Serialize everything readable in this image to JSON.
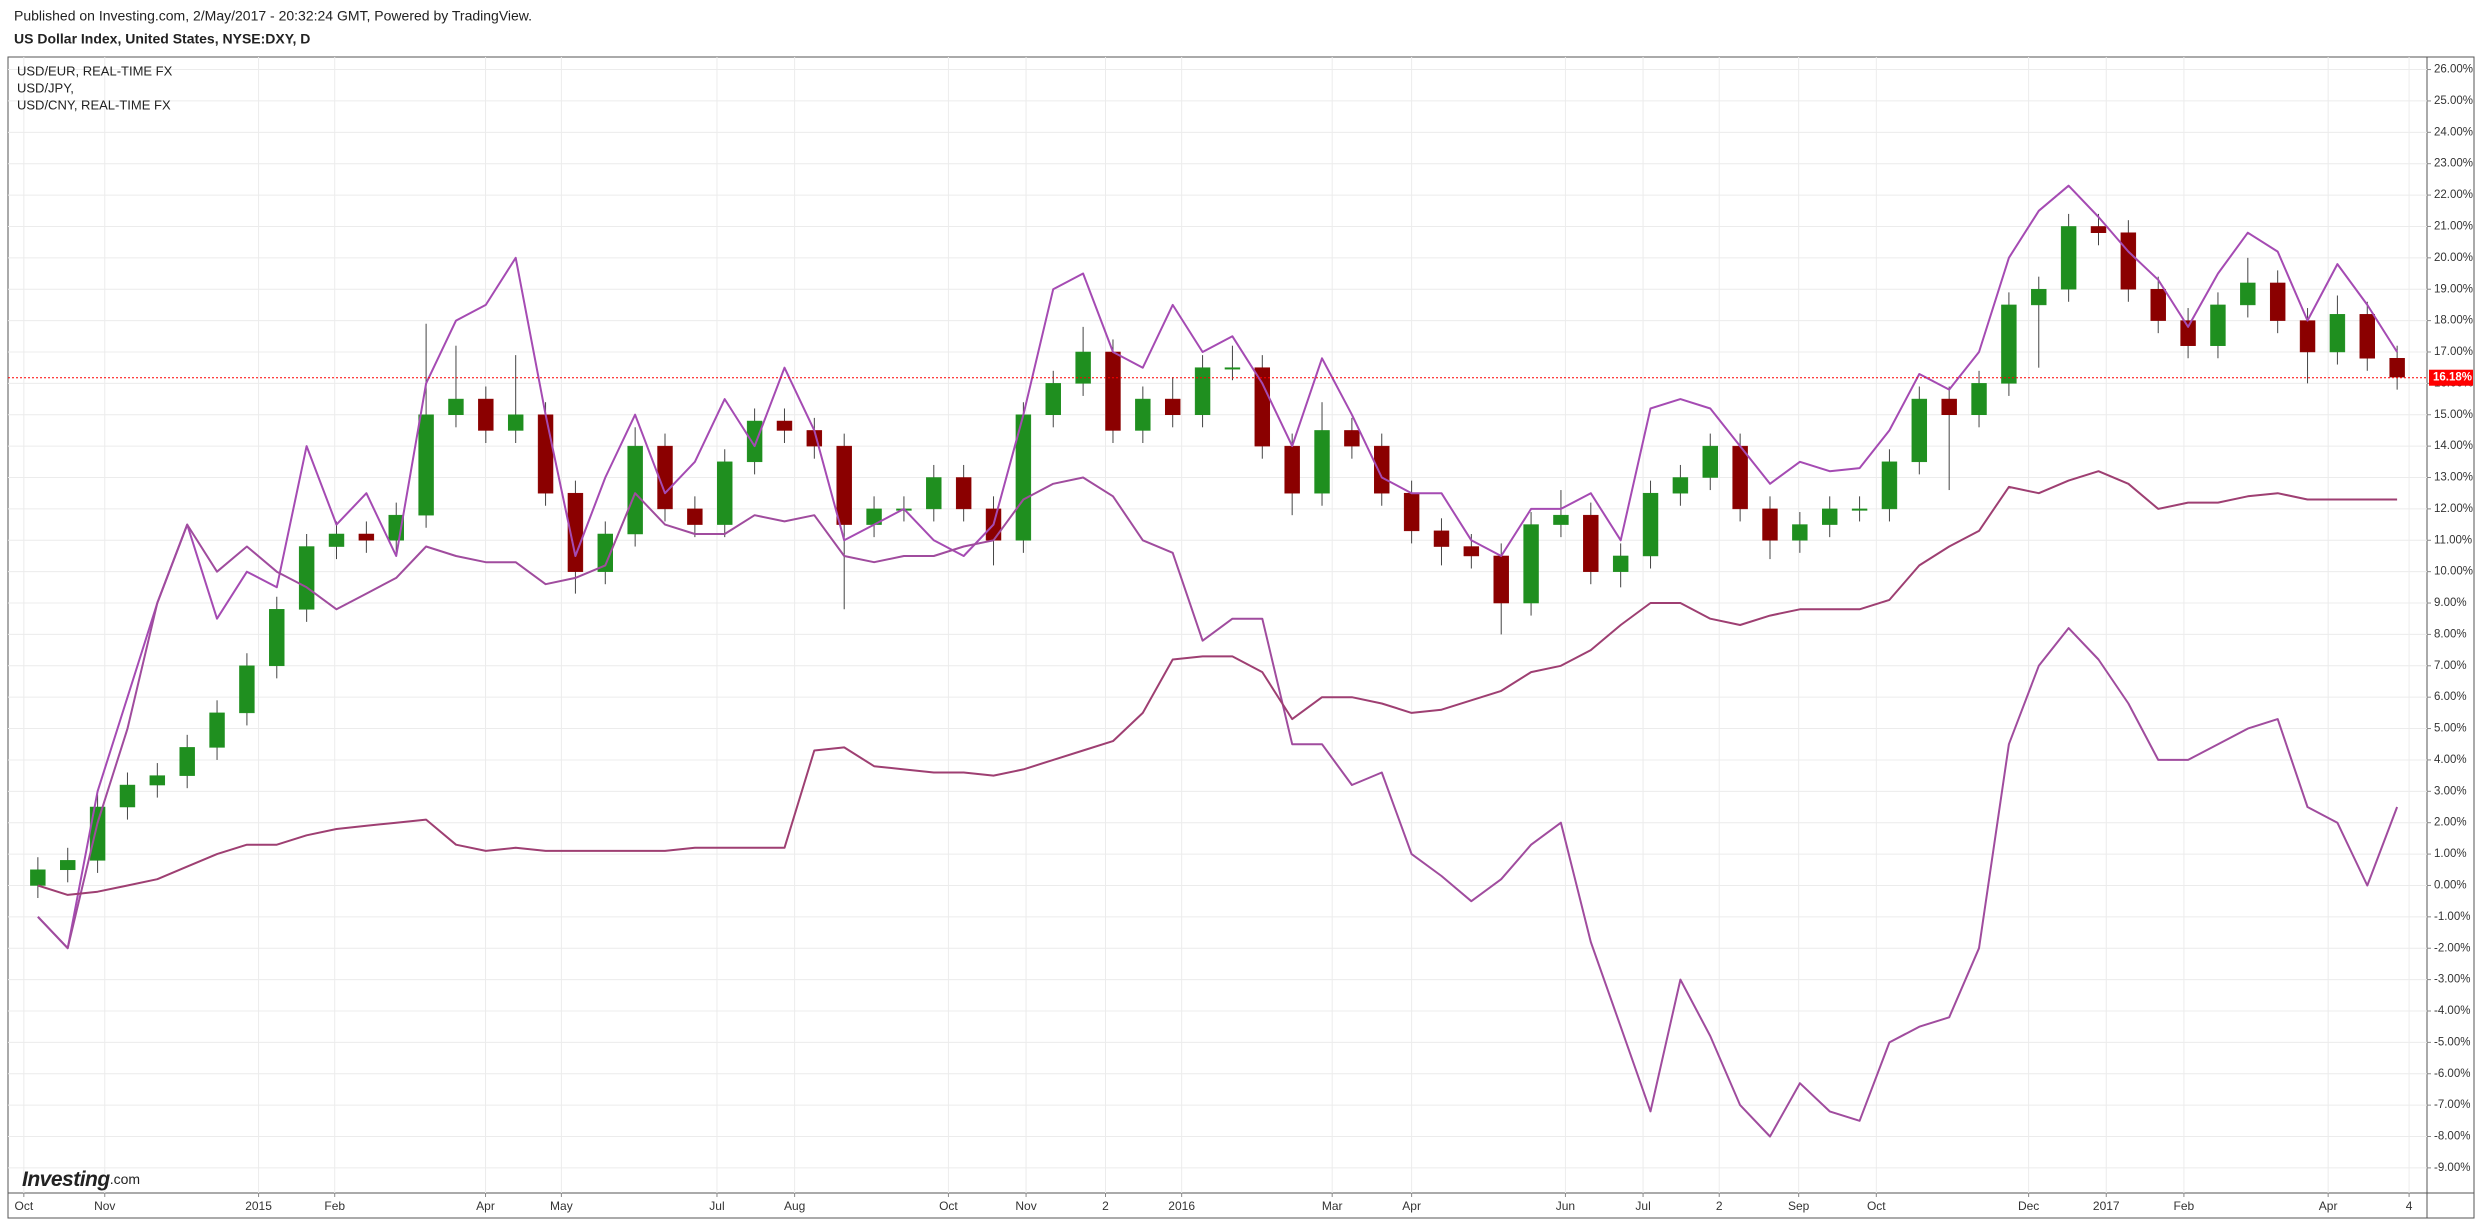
{
  "chart_data": {
    "type": "candlestick",
    "header": "Published on Investing.com, 2/May/2017 - 20:32:24 GMT, Powered by TradingView.",
    "title": "US Dollar Index, United States, NYSE:DXY, D",
    "logo": {
      "brand": "Investing",
      "suffix": ".com"
    },
    "candles": {
      "up_color": "#1f8f1f",
      "down_color": "#8b0000",
      "open": [
        0,
        0.5,
        0.8,
        2.5,
        3.2,
        3.5,
        4.4,
        5.5,
        7,
        8.8,
        10.8,
        11.2,
        11,
        11.8,
        15,
        15.5,
        14.5,
        15,
        12.5,
        10,
        11.2,
        14,
        12,
        11.5,
        13.5,
        14.8,
        14.5,
        14,
        11.5,
        12,
        12,
        13,
        12,
        11,
        15,
        16,
        17,
        14.5,
        15.5,
        15,
        16.5,
        16.5,
        14,
        12.5,
        14.5,
        14,
        12.5,
        11.3,
        10.8,
        10.5,
        9,
        11.5,
        11.8,
        10,
        10.5,
        12.5,
        13,
        14,
        12,
        11,
        11.5,
        12,
        12,
        13.5,
        15.5,
        15,
        16,
        18.5,
        19,
        21,
        20.8,
        19,
        18,
        17.2,
        18.5,
        19.2,
        18,
        17,
        18.2,
        16.8
      ],
      "high": [
        0.9,
        1.2,
        2.9,
        3.6,
        3.9,
        4.8,
        5.9,
        7.4,
        9.2,
        11.2,
        11.6,
        11.6,
        12.2,
        17.9,
        17.2,
        15.9,
        16.9,
        15.4,
        12.9,
        11.6,
        14.6,
        14.4,
        12.4,
        13.9,
        15.2,
        15.2,
        14.9,
        14.4,
        12.4,
        12.4,
        13.4,
        13.4,
        12.4,
        15.4,
        16.4,
        17.8,
        17.4,
        15.9,
        16.2,
        16.9,
        17.2,
        16.9,
        14.4,
        15.4,
        14.9,
        14.4,
        12.9,
        11.7,
        11.2,
        10.9,
        11.9,
        12.6,
        12.2,
        10.9,
        12.9,
        13.4,
        14.4,
        14.4,
        12.4,
        11.9,
        12.4,
        12.4,
        13.9,
        15.9,
        15.9,
        16.4,
        18.9,
        19.4,
        21.4,
        21.4,
        21.2,
        19.4,
        18.4,
        18.9,
        20,
        19.6,
        18.4,
        18.8,
        18.6,
        17.2
      ],
      "low": [
        -0.4,
        0.1,
        0.4,
        2.1,
        2.8,
        3.1,
        4,
        5.1,
        6.6,
        8.4,
        10.4,
        10.6,
        10.6,
        11.4,
        14.6,
        14.1,
        14.1,
        12.1,
        9.3,
        9.6,
        10.8,
        11.6,
        11.1,
        11.1,
        13.1,
        14.1,
        13.6,
        8.8,
        11.1,
        11.6,
        11.6,
        11.6,
        10.2,
        10.6,
        14.6,
        15.6,
        14.1,
        14.1,
        14.6,
        14.6,
        16.1,
        13.6,
        11.8,
        12.1,
        13.6,
        12.1,
        10.9,
        10.2,
        10.1,
        8,
        8.6,
        11.1,
        9.6,
        9.5,
        10.1,
        12.1,
        12.6,
        11.6,
        10.4,
        10.6,
        11.1,
        11.6,
        11.6,
        13.1,
        12.6,
        14.6,
        15.6,
        16.5,
        18.6,
        20.4,
        18.6,
        17.6,
        16.8,
        16.8,
        18.1,
        17.6,
        16,
        16.6,
        16.4,
        15.8
      ],
      "close": [
        0.5,
        0.8,
        2.5,
        3.2,
        3.5,
        4.4,
        5.5,
        7,
        8.8,
        10.8,
        11.2,
        11,
        11.8,
        15,
        15.5,
        14.5,
        15,
        12.5,
        10,
        11.2,
        14,
        12,
        11.5,
        13.5,
        14.8,
        14.5,
        14,
        11.5,
        12,
        12,
        13,
        12,
        11,
        15,
        16,
        17,
        14.5,
        15.5,
        15,
        16.5,
        16.5,
        14,
        12.5,
        14.5,
        14,
        12.5,
        11.3,
        10.8,
        10.5,
        9,
        11.5,
        11.8,
        10,
        10.5,
        12.5,
        13,
        14,
        12,
        11,
        11.5,
        12,
        12,
        13.5,
        15.5,
        15,
        16,
        18.5,
        19,
        21,
        20.8,
        19,
        18,
        17.2,
        18.5,
        19.2,
        18,
        17,
        18.2,
        16.8,
        16.2
      ]
    },
    "series": [
      {
        "name": "USD/EUR, REAL-TIME FX",
        "color": "#a54bb3",
        "values": [
          -1,
          -2,
          3,
          6,
          9,
          11.5,
          8.5,
          10,
          9.5,
          14,
          11.5,
          12.5,
          10.5,
          16,
          18,
          18.5,
          20,
          15,
          10.5,
          13,
          15,
          12.5,
          13.5,
          15.5,
          14,
          16.5,
          14.5,
          11,
          11.5,
          12,
          11,
          10.5,
          11.5,
          15,
          19,
          19.5,
          17,
          16.5,
          18.5,
          17,
          17.5,
          16,
          14,
          16.8,
          15,
          13,
          12.5,
          12.5,
          11,
          10.5,
          12,
          12,
          12.5,
          11,
          15.2,
          15.5,
          15.2,
          14,
          12.8,
          13.5,
          13.2,
          13.3,
          14.5,
          16.3,
          15.8,
          17,
          20,
          21.5,
          22.3,
          21.3,
          20.2,
          19.3,
          17.8,
          19.5,
          20.8,
          20.2,
          18,
          19.8,
          18.5,
          17
        ]
      },
      {
        "name": "USD/JPY,",
        "color": "#a04c9e",
        "values": [
          -1,
          -2,
          2,
          5,
          9,
          11.5,
          10,
          10.8,
          10,
          9.5,
          8.8,
          9.3,
          9.8,
          10.8,
          10.5,
          10.3,
          10.3,
          9.6,
          9.8,
          10.2,
          12.5,
          11.5,
          11.2,
          11.2,
          11.8,
          11.6,
          11.8,
          10.5,
          10.3,
          10.5,
          10.5,
          10.8,
          11,
          12.3,
          12.8,
          13,
          12.4,
          11,
          10.6,
          7.8,
          8.5,
          8.5,
          4.5,
          4.5,
          3.2,
          3.6,
          1,
          0.3,
          -0.5,
          0.2,
          1.3,
          2,
          -1.8,
          -4.5,
          -7.2,
          -3,
          -4.8,
          -7,
          -8,
          -6.3,
          -7.2,
          -7.5,
          -5,
          -4.5,
          -4.2,
          -2,
          4.5,
          7,
          8.2,
          7.2,
          5.8,
          4,
          4,
          4.5,
          5,
          5.3,
          2.5,
          2,
          0,
          2.5
        ]
      },
      {
        "name": "USD/CNY, REAL-TIME FX",
        "color": "#9e3f72",
        "values": [
          0,
          -0.3,
          -0.2,
          0,
          0.2,
          0.6,
          1,
          1.3,
          1.3,
          1.6,
          1.8,
          1.9,
          2,
          2.1,
          1.3,
          1.1,
          1.2,
          1.1,
          1.1,
          1.1,
          1.1,
          1.1,
          1.2,
          1.2,
          1.2,
          1.2,
          4.3,
          4.4,
          3.8,
          3.7,
          3.6,
          3.6,
          3.5,
          3.7,
          4,
          4.3,
          4.6,
          5.5,
          7.2,
          7.3,
          7.3,
          6.8,
          5.3,
          6,
          6,
          5.8,
          5.5,
          5.6,
          5.9,
          6.2,
          6.8,
          7,
          7.5,
          8.3,
          9,
          9,
          8.5,
          8.3,
          8.6,
          8.8,
          8.8,
          8.8,
          9.1,
          10.2,
          10.8,
          11.3,
          12.7,
          12.5,
          12.9,
          13.2,
          12.8,
          12,
          12.2,
          12.2,
          12.4,
          12.5,
          12.3,
          12.3,
          12.3,
          12.3
        ]
      }
    ],
    "xlim": [
      -1,
      80
    ],
    "xticks": [
      {
        "value": -0.47,
        "label": "Oct"
      },
      {
        "value": 2.24,
        "label": "Nov"
      },
      {
        "value": 7.39,
        "label": "2015"
      },
      {
        "value": 9.94,
        "label": "Feb"
      },
      {
        "value": 14.99,
        "label": "Apr"
      },
      {
        "value": 17.53,
        "label": "May"
      },
      {
        "value": 22.74,
        "label": "Jul"
      },
      {
        "value": 25.34,
        "label": "Aug"
      },
      {
        "value": 30.49,
        "label": "Oct"
      },
      {
        "value": 33.09,
        "label": "Nov"
      },
      {
        "value": 35.75,
        "label": "2"
      },
      {
        "value": 38.3,
        "label": "2016"
      },
      {
        "value": 43.34,
        "label": "Mar"
      },
      {
        "value": 46.0,
        "label": "Apr"
      },
      {
        "value": 51.15,
        "label": "Jun"
      },
      {
        "value": 53.75,
        "label": "Jul"
      },
      {
        "value": 56.3,
        "label": "2"
      },
      {
        "value": 58.96,
        "label": "Sep"
      },
      {
        "value": 61.56,
        "label": "Oct"
      },
      {
        "value": 66.66,
        "label": "Dec"
      },
      {
        "value": 69.26,
        "label": "2017"
      },
      {
        "value": 71.86,
        "label": "Feb"
      },
      {
        "value": 76.69,
        "label": "Apr"
      },
      {
        "value": 79.4,
        "label": "4"
      }
    ],
    "ylim": [
      -9.8,
      26.4
    ],
    "yticks": [
      {
        "value": -9,
        "label": "-9.00%"
      },
      {
        "value": -8,
        "label": "-8.00%"
      },
      {
        "value": -7,
        "label": "-7.00%"
      },
      {
        "value": -6,
        "label": "-6.00%"
      },
      {
        "value": -5,
        "label": "-5.00%"
      },
      {
        "value": -4,
        "label": "-4.00%"
      },
      {
        "value": -3,
        "label": "-3.00%"
      },
      {
        "value": -2,
        "label": "-2.00%"
      },
      {
        "value": -1,
        "label": "-1.00%"
      },
      {
        "value": 0,
        "label": "0.00%"
      },
      {
        "value": 1,
        "label": "1.00%"
      },
      {
        "value": 2,
        "label": "2.00%"
      },
      {
        "value": 3,
        "label": "3.00%"
      },
      {
        "value": 4,
        "label": "4.00%"
      },
      {
        "value": 5,
        "label": "5.00%"
      },
      {
        "value": 6,
        "label": "6.00%"
      },
      {
        "value": 7,
        "label": "7.00%"
      },
      {
        "value": 8,
        "label": "8.00%"
      },
      {
        "value": 9,
        "label": "9.00%"
      },
      {
        "value": 10,
        "label": "10.00%"
      },
      {
        "value": 11,
        "label": "11.00%"
      },
      {
        "value": 12,
        "label": "12.00%"
      },
      {
        "value": 13,
        "label": "13.00%"
      },
      {
        "value": 14,
        "label": "14.00%"
      },
      {
        "value": 15,
        "label": "15.00%"
      },
      {
        "value": 16,
        "label": "16.00%"
      },
      {
        "value": 17,
        "label": "17.00%"
      },
      {
        "value": 18,
        "label": "18.00%"
      },
      {
        "value": 19,
        "label": "19.00%"
      },
      {
        "value": 20,
        "label": "20.00%"
      },
      {
        "value": 21,
        "label": "21.00%"
      },
      {
        "value": 22,
        "label": "22.00%"
      },
      {
        "value": 23,
        "label": "23.00%"
      },
      {
        "value": 24,
        "label": "24.00%"
      },
      {
        "value": 25,
        "label": "25.00%"
      },
      {
        "value": 26,
        "label": "26.00%"
      }
    ],
    "grid": true,
    "price_line": {
      "value": 16.18,
      "label": "16.18%",
      "color": "#ff0000"
    }
  }
}
